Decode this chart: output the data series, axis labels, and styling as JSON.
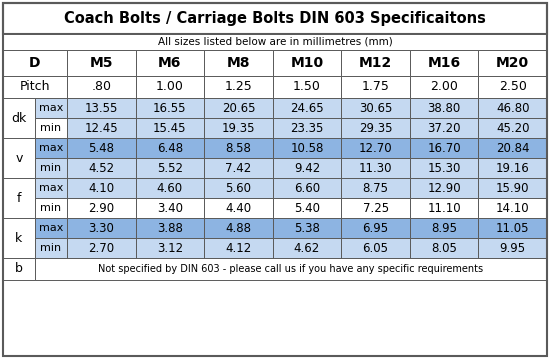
{
  "title": "Coach Bolts / Carriage Bolts DIN 603 Specificaitons",
  "subtitle": "All sizes listed below are in millimetres (mm)",
  "footer": "Not specified by DIN 603 - please call us if you have any specific requirements",
  "m_labels": [
    "M5",
    "M6",
    "M8",
    "M10",
    "M12",
    "M16",
    "M20"
  ],
  "pitch_vals": [
    ".80",
    "1.00",
    "1.25",
    "1.50",
    "1.75",
    "2.00",
    "2.50"
  ],
  "groups": [
    {
      "label": "dk",
      "rows": [
        {
          "sub": "max",
          "values": [
            "13.55",
            "16.55",
            "20.65",
            "24.65",
            "30.65",
            "38.80",
            "46.80"
          ],
          "row_bg": "#C5D9F1",
          "sub_bg": "#C5D9F1"
        },
        {
          "sub": "min",
          "values": [
            "12.45",
            "15.45",
            "19.35",
            "23.35",
            "29.35",
            "37.20",
            "45.20"
          ],
          "row_bg": "#C5D9F1",
          "sub_bg": "#FFFFFF"
        }
      ],
      "label_bg": "#FFFFFF"
    },
    {
      "label": "v",
      "rows": [
        {
          "sub": "max",
          "values": [
            "5.48",
            "6.48",
            "8.58",
            "10.58",
            "12.70",
            "16.70",
            "20.84"
          ],
          "row_bg": "#8DB4E2",
          "sub_bg": "#8DB4E2"
        },
        {
          "sub": "min",
          "values": [
            "4.52",
            "5.52",
            "7.42",
            "9.42",
            "11.30",
            "15.30",
            "19.16"
          ],
          "row_bg": "#C5D9F1",
          "sub_bg": "#C5D9F1"
        }
      ],
      "label_bg": "#FFFFFF"
    },
    {
      "label": "f",
      "rows": [
        {
          "sub": "max",
          "values": [
            "4.10",
            "4.60",
            "5.60",
            "6.60",
            "8.75",
            "12.90",
            "15.90"
          ],
          "row_bg": "#C5D9F1",
          "sub_bg": "#C5D9F1"
        },
        {
          "sub": "min",
          "values": [
            "2.90",
            "3.40",
            "4.40",
            "5.40",
            "7.25",
            "11.10",
            "14.10"
          ],
          "row_bg": "#FFFFFF",
          "sub_bg": "#FFFFFF"
        }
      ],
      "label_bg": "#FFFFFF"
    },
    {
      "label": "k",
      "rows": [
        {
          "sub": "max",
          "values": [
            "3.30",
            "3.88",
            "4.88",
            "5.38",
            "6.95",
            "8.95",
            "11.05"
          ],
          "row_bg": "#8DB4E2",
          "sub_bg": "#8DB4E2"
        },
        {
          "sub": "min",
          "values": [
            "2.70",
            "3.12",
            "4.12",
            "4.62",
            "6.05",
            "8.05",
            "9.95"
          ],
          "row_bg": "#C5D9F1",
          "sub_bg": "#C5D9F1"
        }
      ],
      "label_bg": "#FFFFFF"
    }
  ],
  "color_white": "#FFFFFF",
  "color_light_blue": "#C5D9F1",
  "color_medium_blue": "#8DB4E2",
  "color_border": "#5A5A5A",
  "color_text": "#000000",
  "title_fontsize": 10.5,
  "subtitle_fontsize": 7.5,
  "header_fontsize": 10,
  "data_fontsize": 8.5,
  "footer_fontsize": 7.0,
  "figw": 5.5,
  "figh": 3.59,
  "dpi": 100
}
